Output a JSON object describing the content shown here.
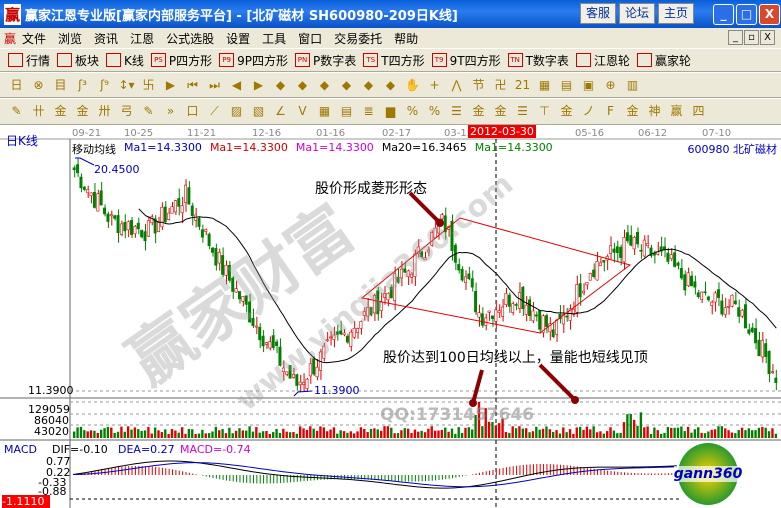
{
  "window": {
    "title": "赢家江恩专业版[赢家内部服务平台] - [北矿磁材    SH600980-209日K线]",
    "logo": "赢",
    "buttons": [
      "客服",
      "论坛",
      "主页"
    ],
    "controls": [
      "_",
      "□",
      "X"
    ]
  },
  "menu": {
    "logo": "赢",
    "items": [
      "文件",
      "浏览",
      "资讯",
      "江恩",
      "公式选股",
      "设置",
      "工具",
      "窗口",
      "交易委托",
      "帮助"
    ],
    "mdi": [
      "_",
      "▫",
      "X"
    ]
  },
  "toolbar1": [
    {
      "icon": "table-icon",
      "label": "行情"
    },
    {
      "icon": "blocks-icon",
      "label": "板块"
    },
    {
      "icon": "candle-icon",
      "label": "K线"
    },
    {
      "icon": "PS",
      "label": "P四方形"
    },
    {
      "icon": "P9",
      "label": "9P四方形"
    },
    {
      "icon": "PN",
      "label": "P数字表"
    },
    {
      "icon": "TS",
      "label": "T四方形"
    },
    {
      "icon": "T9",
      "label": "9T四方形"
    },
    {
      "icon": "TN",
      "label": "T数字表"
    },
    {
      "icon": "wheel-icon",
      "label": "江恩轮"
    },
    {
      "icon": "big-wheel-icon",
      "label": "赢家轮"
    }
  ],
  "toolbar2": [
    "日▾",
    "⊗",
    "目",
    "ʃ³",
    "ʃ⁹",
    "↕▾",
    "卐",
    "▶",
    "⏮",
    "⏭",
    "◀",
    "▶",
    "◆",
    "◆",
    "◆",
    "◆",
    "◆",
    "◆",
    "✋",
    "+",
    "⋀",
    "节",
    "卍",
    "21",
    "▦",
    "▤",
    "▣",
    "⊕",
    "▥"
  ],
  "toolbar3": [
    "✎",
    "卄",
    "金",
    "金",
    "卅",
    "弓",
    "✎",
    "»",
    "口",
    "⟋",
    "▨",
    "▧",
    "∠",
    "V",
    "▦",
    "▤",
    "≣",
    "▆",
    "%",
    "%",
    "☰",
    "金",
    "金",
    "☰",
    "⊤",
    "金",
    "ノ",
    "F",
    "金",
    "神",
    "赢",
    "四"
  ],
  "chart": {
    "period_label": "日K线",
    "dates": [
      "09-21",
      "10-25",
      "11-21",
      "12-16",
      "01-16",
      "02-17",
      "03-15",
      "05-16",
      "06-12",
      "07-10"
    ],
    "cursor_date": "2012-03-30",
    "indicator_title": "移动均线",
    "ma_labels": [
      {
        "text": "Ma1=14.3300",
        "color": "#0000c0"
      },
      {
        "text": "Ma1=14.3300",
        "color": "#d00000"
      },
      {
        "text": "Ma1=14.3300",
        "color": "#d000d0"
      },
      {
        "text": "Ma20=16.3465",
        "color": "#000000"
      },
      {
        "text": "Ma1=14.3300",
        "color": "#008000"
      }
    ],
    "stock": "600980  北矿磁材",
    "high_label": "20.4500",
    "low_label": "11.3900",
    "axis_low": "11.3900",
    "vol_ticks": [
      "129059",
      "86040",
      "43020"
    ],
    "macd": {
      "title": "MACD",
      "dif": "DIF=-0.10",
      "dea": "DEA=0.27",
      "macd": "MACD=-0.74",
      "ticks": [
        "0.77",
        "0.22",
        "-0.33",
        "-0.88"
      ],
      "cursor_value": "-1.1110"
    },
    "annotations": [
      "股价形成菱形形态",
      "股价达到100日均线以上，量能也短线见顶"
    ],
    "watermarks": [
      "赢家财富",
      "www.yingjia360.com",
      "QQ:1731457646"
    ],
    "badge": "gann360",
    "colors": {
      "up": "#e00000",
      "down": "#008000",
      "ma20": "#000000",
      "dif": "#000000",
      "dea": "#0000c0",
      "diamond": "#e00000",
      "arrow": "#8b0000"
    }
  },
  "chart_data": {
    "type": "candlestick",
    "bars": 209,
    "price_high": 20.45,
    "price_low": 11.39,
    "close_waypoints": [
      20.0,
      18.0,
      17.6,
      19.0,
      16.2,
      13.8,
      11.6,
      13.2,
      14.5,
      16.0,
      18.0,
      14.3,
      15.2,
      13.6,
      16.2,
      17.1,
      16.5,
      15.0,
      14.6,
      12.0
    ]
  }
}
